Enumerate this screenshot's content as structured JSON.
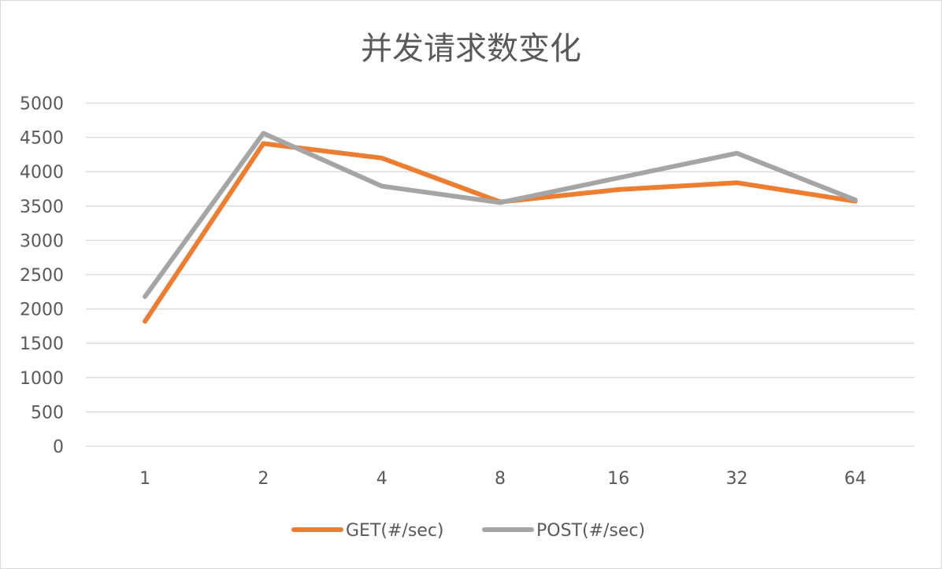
{
  "chart_data": {
    "type": "line",
    "title": "并发请求数变化",
    "xlabel": "",
    "ylabel": "",
    "categories": [
      "1",
      "2",
      "4",
      "8",
      "16",
      "32",
      "64"
    ],
    "ylim": [
      0,
      5000
    ],
    "yticks": [
      0,
      500,
      1000,
      1500,
      2000,
      2500,
      3000,
      3500,
      4000,
      4500,
      5000
    ],
    "grid": true,
    "legend_position": "bottom",
    "series": [
      {
        "name": "GET(#/sec)",
        "color": "#ED7D31",
        "values": [
          1820,
          4410,
          4200,
          3560,
          3740,
          3840,
          3570
        ]
      },
      {
        "name": "POST(#/sec)",
        "color": "#A5A5A5",
        "values": [
          2180,
          4560,
          3790,
          3550,
          3910,
          4270,
          3590
        ]
      }
    ]
  }
}
